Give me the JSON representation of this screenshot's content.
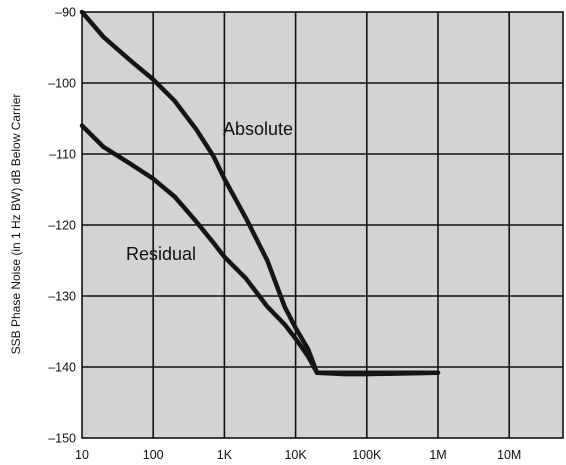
{
  "chart_data": {
    "type": "line",
    "title": "",
    "xlabel": "",
    "ylabel": "SSB Phase Noise (in 1 Hz BW) dB Below Carrier",
    "x_scale": "log",
    "xlim": [
      10,
      100000000
    ],
    "ylim": [
      -150,
      -90
    ],
    "grid": true,
    "x_ticks": [
      10,
      100,
      1000,
      10000,
      100000,
      1000000,
      10000000
    ],
    "x_tick_labels": [
      "10",
      "100",
      "1K",
      "10K",
      "100K",
      "1M",
      "10M"
    ],
    "y_ticks": [
      -90,
      -100,
      -110,
      -120,
      -130,
      -140,
      -150
    ],
    "y_tick_labels": [
      "–90",
      "–100",
      "–110",
      "–120",
      "–130",
      "–140",
      "–150"
    ],
    "series": [
      {
        "name": "Absolute",
        "x": [
          10,
          20,
          50,
          100,
          200,
          400,
          700,
          1000,
          2000,
          4000,
          7000,
          10000,
          15000,
          20000,
          50000,
          100000,
          1000000
        ],
        "y": [
          -90,
          -93.5,
          -97,
          -99.5,
          -102.5,
          -106.5,
          -110.3,
          -113.5,
          -119,
          -125,
          -131.5,
          -134.5,
          -137.5,
          -140.8,
          -140.8,
          -140.8,
          -140.8
        ]
      },
      {
        "name": "Residual",
        "x": [
          10,
          20,
          50,
          100,
          200,
          400,
          700,
          1000,
          2000,
          4000,
          7000,
          10000,
          15000,
          20000,
          50000,
          100000,
          1000000
        ],
        "y": [
          -106,
          -109,
          -111.5,
          -113.5,
          -116,
          -119.5,
          -122.5,
          -124.5,
          -127.5,
          -131.5,
          -134,
          -136,
          -138.5,
          -140.8,
          -141,
          -141,
          -140.8
        ]
      }
    ],
    "annotations": [
      {
        "text": "Absolute",
        "series": "Absolute"
      },
      {
        "text": "Residual",
        "series": "Residual"
      }
    ]
  }
}
